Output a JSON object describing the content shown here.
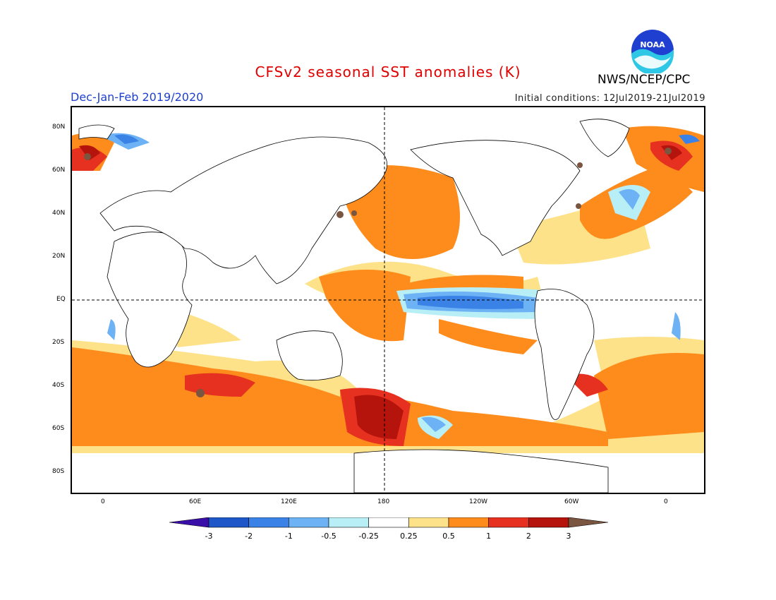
{
  "header": {
    "title": "CFSv2 seasonal SST anomalies (K)",
    "season": "Dec-Jan-Feb 2019/2020",
    "initial_conditions": "Initial conditions: 12Jul2019-21Jul2019",
    "agency": "NWS/NCEP/CPC",
    "logo_text": "NOAA"
  },
  "map": {
    "lat_labels": [
      "80N",
      "60N",
      "40N",
      "20N",
      "EQ",
      "20S",
      "40S",
      "60S",
      "80S"
    ],
    "lon_labels": [
      "0",
      "60E",
      "120E",
      "180",
      "120W",
      "60W",
      "0"
    ]
  },
  "colorbar": {
    "labels": [
      "-3",
      "-2",
      "-1",
      "-0.5",
      "-0.25",
      "0.25",
      "0.5",
      "1",
      "2",
      "3"
    ],
    "colors": [
      "#3a0ea8",
      "#1e58c8",
      "#3a82e6",
      "#6cb2f4",
      "#b8eef6",
      "#ffffff",
      "#fde28a",
      "#fe8c1c",
      "#e63020",
      "#b4140c",
      "#7a5540"
    ]
  },
  "colors": {
    "title": "#e00000",
    "season": "#1f3fd0"
  }
}
